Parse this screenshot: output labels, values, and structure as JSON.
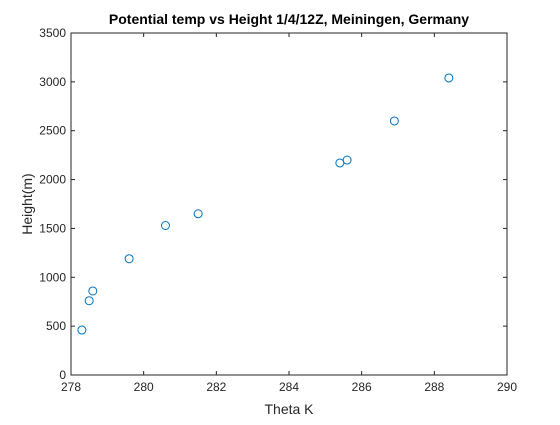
{
  "chart_data": {
    "type": "scatter",
    "title": "Potential temp vs Height 1/4/12Z, Meiningen, Germany",
    "xlabel": "Theta K",
    "ylabel": "Height(m)",
    "xlim": [
      278,
      290
    ],
    "ylim": [
      0,
      3500
    ],
    "xticks": [
      278,
      280,
      282,
      284,
      286,
      288,
      290
    ],
    "yticks": [
      0,
      500,
      1000,
      1500,
      2000,
      2500,
      3000,
      3500
    ],
    "xtick_labels": [
      "278",
      "280",
      "282",
      "284",
      "286",
      "288",
      "290"
    ],
    "ytick_labels": [
      "0",
      "500",
      "1000",
      "1500",
      "2000",
      "2500",
      "3000",
      "3500"
    ],
    "grid": false,
    "marker": "open-circle",
    "series": [
      {
        "color": "#0072BD",
        "x": [
          278.3,
          278.5,
          278.6,
          279.6,
          280.6,
          281.5,
          285.4,
          285.6,
          286.9,
          288.4
        ],
        "y": [
          460,
          760,
          860,
          1190,
          1530,
          1650,
          2170,
          2200,
          2600,
          3040
        ]
      }
    ]
  }
}
